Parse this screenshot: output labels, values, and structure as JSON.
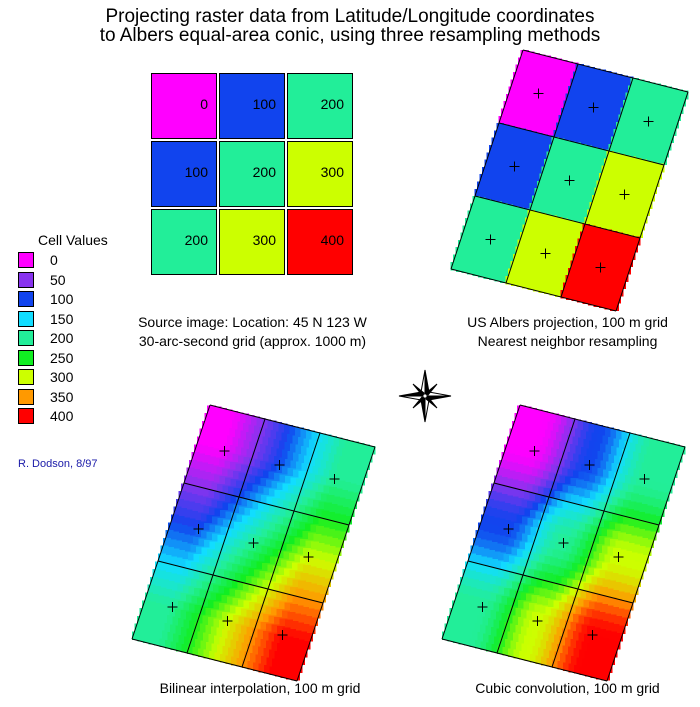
{
  "title": {
    "line1": "Projecting raster data from Latitude/Longitude coordinates",
    "line2": "to Albers equal-area conic, using three resampling methods"
  },
  "source_grid": {
    "cells": [
      {
        "value": "0",
        "color": "#ff00ff"
      },
      {
        "value": "100",
        "color": "#1144ee"
      },
      {
        "value": "200",
        "color": "#22ee99"
      },
      {
        "value": "100",
        "color": "#1144ee"
      },
      {
        "value": "200",
        "color": "#22ee99"
      },
      {
        "value": "300",
        "color": "#ccff00"
      },
      {
        "value": "200",
        "color": "#22ee99"
      },
      {
        "value": "300",
        "color": "#ccff00"
      },
      {
        "value": "400",
        "color": "#ff0000"
      }
    ],
    "caption_line1": "Source image: Location: 45 N 123 W",
    "caption_line2": "30-arc-second grid (approx. 1000 m)"
  },
  "nearest_panel": {
    "caption_line1": "US Albers projection, 100 m grid",
    "caption_line2": "Nearest neighbor resampling"
  },
  "bilinear_panel": {
    "caption": "Bilinear interpolation, 100 m grid"
  },
  "cubic_panel": {
    "caption": "Cubic convolution, 100 m grid"
  },
  "legend": {
    "title": "Cell Values",
    "items": [
      {
        "label": "0",
        "color": "#ff00ff"
      },
      {
        "label": "50",
        "color": "#8833ee"
      },
      {
        "label": "100",
        "color": "#1144ee"
      },
      {
        "label": "150",
        "color": "#11ddff"
      },
      {
        "label": "200",
        "color": "#22ee99"
      },
      {
        "label": "250",
        "color": "#11ee22"
      },
      {
        "label": "300",
        "color": "#ccff00"
      },
      {
        "label": "350",
        "color": "#ff9900"
      },
      {
        "label": "400",
        "color": "#ff0000"
      }
    ]
  },
  "credit": "R. Dodson, 8/97",
  "compass": {
    "icon": "compass-rose-icon"
  }
}
